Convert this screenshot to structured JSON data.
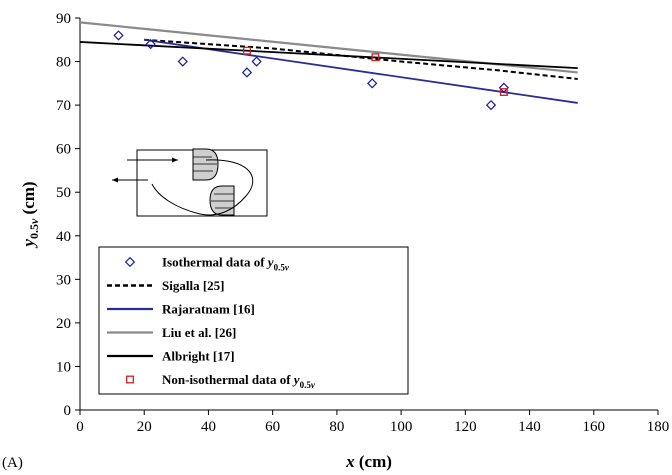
{
  "chart_data": {
    "type": "scatter",
    "panel_label": "(A)",
    "xlabel": "x (cm)",
    "ylabel": "y0.5v (cm)",
    "xlim": [
      0,
      180
    ],
    "ylim": [
      0,
      90
    ],
    "xticks": [
      0,
      20,
      40,
      60,
      80,
      100,
      120,
      140,
      160,
      180
    ],
    "yticks": [
      0,
      10,
      20,
      30,
      40,
      50,
      60,
      70,
      80,
      90
    ],
    "grid": false,
    "legend_position": "lower-left",
    "series": [
      {
        "name": "Isothermal data of y0.5v",
        "kind": "scatter",
        "marker": "diamond",
        "color": "#1a1aa0",
        "points": [
          [
            12,
            86
          ],
          [
            22,
            84
          ],
          [
            32,
            80
          ],
          [
            52,
            77.5
          ],
          [
            55,
            80
          ],
          [
            91,
            75
          ],
          [
            128,
            70
          ],
          [
            132,
            74
          ]
        ]
      },
      {
        "name": "Sigalla [25]",
        "kind": "line",
        "style": "dashed",
        "color": "#000000",
        "points": [
          [
            20,
            85
          ],
          [
            60,
            83
          ],
          [
            100,
            80
          ],
          [
            130,
            78
          ],
          [
            155,
            76
          ]
        ]
      },
      {
        "name": "Rajaratnam [16]",
        "kind": "line",
        "style": "solid",
        "color": "#2b2b9a",
        "points": [
          [
            20,
            85
          ],
          [
            155,
            70.5
          ]
        ]
      },
      {
        "name": "Liu et al. [26]",
        "kind": "line",
        "style": "solid",
        "color": "#8a8a8a",
        "points": [
          [
            0,
            89
          ],
          [
            155,
            77.5
          ]
        ]
      },
      {
        "name": "Albright [17]",
        "kind": "line",
        "style": "solid",
        "color": "#000000",
        "points": [
          [
            0,
            84.5
          ],
          [
            155,
            78.5
          ]
        ]
      },
      {
        "name": "Non-isothermal data of y0.5v",
        "kind": "scatter",
        "marker": "square",
        "color": "#d02020",
        "points": [
          [
            52,
            82.5
          ],
          [
            92,
            81
          ],
          [
            132,
            73
          ]
        ]
      }
    ]
  }
}
